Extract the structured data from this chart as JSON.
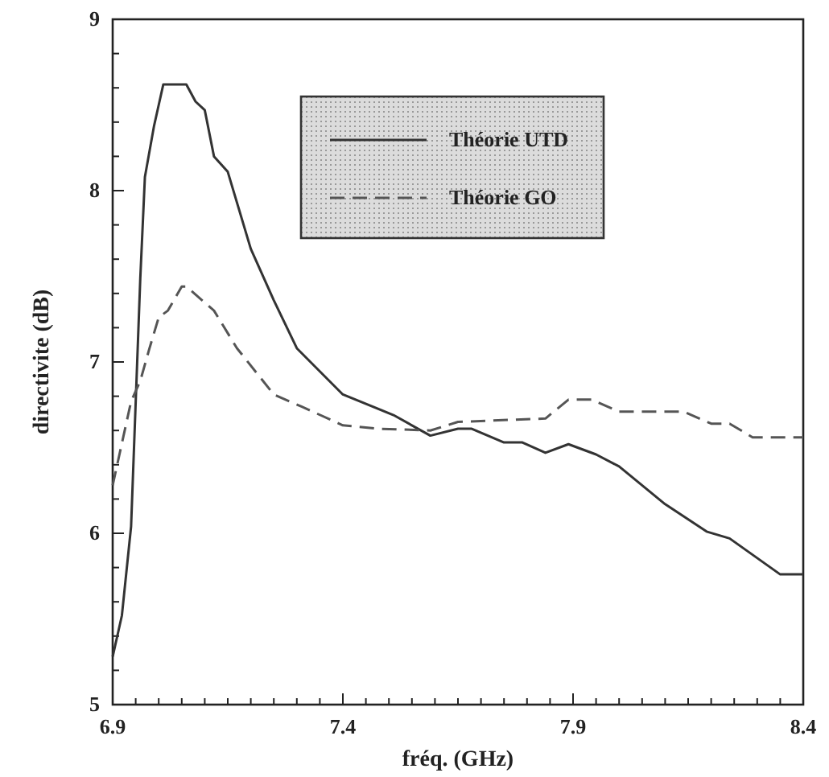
{
  "chart_data": {
    "type": "line",
    "xlabel": "fréq. (GHz)",
    "ylabel": "directivite (dB)",
    "xlim": [
      6.9,
      8.4
    ],
    "ylim": [
      5,
      9
    ],
    "xticks": [
      6.9,
      {
        "value": 6.95,
        "label": null
      },
      {
        "value": 7.0,
        "label": null
      },
      {
        "value": 7.05,
        "label": null
      },
      {
        "value": 7.1,
        "label": null
      },
      {
        "value": 7.15,
        "label": null
      },
      {
        "value": 7.2,
        "label": null
      },
      {
        "value": 7.25,
        "label": null
      },
      {
        "value": 7.3,
        "label": null
      },
      {
        "value": 7.35,
        "label": null
      },
      7.4,
      {
        "value": 7.45,
        "label": null
      },
      {
        "value": 7.5,
        "label": null
      },
      {
        "value": 7.55,
        "label": null
      },
      {
        "value": 7.6,
        "label": null
      },
      {
        "value": 7.65,
        "label": null
      },
      {
        "value": 7.7,
        "label": null
      },
      {
        "value": 7.75,
        "label": null
      },
      {
        "value": 7.8,
        "label": null
      },
      {
        "value": 7.85,
        "label": null
      },
      7.9,
      {
        "value": 7.95,
        "label": null
      },
      {
        "value": 8.0,
        "label": null
      },
      {
        "value": 8.05,
        "label": null
      },
      {
        "value": 8.1,
        "label": null
      },
      {
        "value": 8.15,
        "label": null
      },
      {
        "value": 8.2,
        "label": null
      },
      {
        "value": 8.25,
        "label": null
      },
      {
        "value": 8.3,
        "label": null
      },
      {
        "value": 8.35,
        "label": null
      },
      8.4
    ],
    "yticks": [
      5,
      {
        "value": 5.2,
        "label": null
      },
      {
        "value": 5.4,
        "label": null
      },
      {
        "value": 5.6,
        "label": null
      },
      {
        "value": 5.8,
        "label": null
      },
      6,
      {
        "value": 6.2,
        "label": null
      },
      {
        "value": 6.4,
        "label": null
      },
      {
        "value": 6.6,
        "label": null
      },
      {
        "value": 6.8,
        "label": null
      },
      7,
      {
        "value": 7.2,
        "label": null
      },
      {
        "value": 7.4,
        "label": null
      },
      {
        "value": 7.6,
        "label": null
      },
      {
        "value": 7.8,
        "label": null
      },
      8,
      {
        "value": 8.2,
        "label": null
      },
      {
        "value": 8.4,
        "label": null
      },
      {
        "value": 8.6,
        "label": null
      },
      {
        "value": 8.8,
        "label": null
      },
      9
    ],
    "legend": "top right",
    "grid": false,
    "series": [
      {
        "name": "Théorie UTD",
        "color": "#333333",
        "line_style": "solid",
        "x": [
          6.9,
          6.92,
          6.94,
          6.96,
          6.97,
          6.99,
          7.0,
          7.01,
          7.06,
          7.08,
          7.1,
          7.12,
          7.15,
          7.2,
          7.25,
          7.3,
          7.4,
          7.51,
          7.59,
          7.65,
          7.68,
          7.75,
          7.79,
          7.84,
          7.89,
          7.95,
          8.0,
          8.1,
          8.19,
          8.24,
          8.35,
          8.4
        ],
        "values": [
          5.28,
          5.52,
          6.04,
          7.49,
          8.08,
          8.38,
          8.5,
          8.62,
          8.62,
          8.52,
          8.47,
          8.2,
          8.11,
          7.66,
          7.36,
          7.08,
          6.81,
          6.69,
          6.57,
          6.61,
          6.61,
          6.53,
          6.53,
          6.47,
          6.52,
          6.46,
          6.39,
          6.17,
          6.01,
          5.97,
          5.76,
          5.76
        ]
      },
      {
        "name": "Théorie GO",
        "color": "#555555",
        "line_style": "dashed",
        "x": [
          6.9,
          6.94,
          6.96,
          6.98,
          7.0,
          7.02,
          7.05,
          7.06,
          7.12,
          7.17,
          7.25,
          7.31,
          7.4,
          7.48,
          7.59,
          7.65,
          7.84,
          7.89,
          7.94,
          8.0,
          8.14,
          8.2,
          8.24,
          8.29,
          8.4
        ],
        "values": [
          6.28,
          6.77,
          6.89,
          7.08,
          7.26,
          7.3,
          7.44,
          7.44,
          7.3,
          7.08,
          6.81,
          6.74,
          6.63,
          6.61,
          6.6,
          6.65,
          6.67,
          6.78,
          6.78,
          6.71,
          6.71,
          6.64,
          6.64,
          6.56,
          6.56
        ]
      }
    ]
  }
}
